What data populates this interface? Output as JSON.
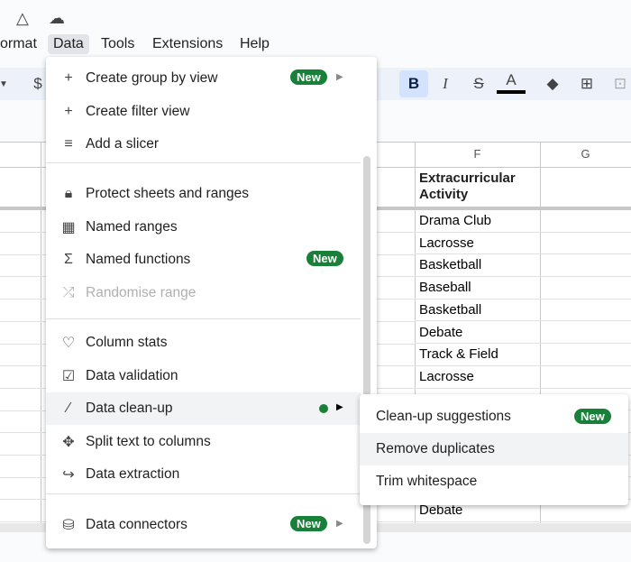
{
  "menubar": {
    "items": [
      "ormat",
      "Data",
      "Tools",
      "Extensions",
      "Help"
    ]
  },
  "toolbar": {
    "currency": "$",
    "bold": "B",
    "italic": "I",
    "strike": "S",
    "text_color": "A"
  },
  "grid": {
    "columns": [
      "F",
      "G"
    ],
    "header_cell": "Extracurricular Activity",
    "rows": [
      "Drama Club",
      "Lacrosse",
      "Basketball",
      "Baseball",
      "Basketball",
      "Debate",
      "Track & Field",
      "Lacrosse",
      "",
      "",
      "",
      "",
      "",
      "Debate"
    ]
  },
  "data_menu": {
    "items": [
      {
        "label": "Create group by view",
        "icon": "plus-icon",
        "badge": "New",
        "submenu": true
      },
      {
        "label": "Create filter view",
        "icon": "plus-icon"
      },
      {
        "label": "Add a slicer",
        "icon": "filter-icon"
      },
      {
        "label": "Protect sheets and ranges",
        "icon": "lock-icon"
      },
      {
        "label": "Named ranges",
        "icon": "table-icon"
      },
      {
        "label": "Named functions",
        "icon": "sigma-icon",
        "badge": "New"
      },
      {
        "label": "Randomise range",
        "icon": "shuffle-icon",
        "disabled": true
      },
      {
        "label": "Column stats",
        "icon": "lightbulb-icon"
      },
      {
        "label": "Data validation",
        "icon": "validation-icon"
      },
      {
        "label": "Data clean-up",
        "icon": "magic-wand-icon",
        "submenu": true
      },
      {
        "label": "Split text to columns",
        "icon": "split-icon"
      },
      {
        "label": "Data extraction",
        "icon": "extract-icon"
      },
      {
        "label": "Data connectors",
        "icon": "database-icon",
        "badge": "New",
        "submenu": true
      }
    ]
  },
  "cleanup_submenu": {
    "items": [
      {
        "label": "Clean-up suggestions",
        "badge": "New"
      },
      {
        "label": "Remove duplicates"
      },
      {
        "label": "Trim whitespace"
      }
    ]
  },
  "colors": {
    "badge": "#188038",
    "accent": "#c2d7f7"
  }
}
